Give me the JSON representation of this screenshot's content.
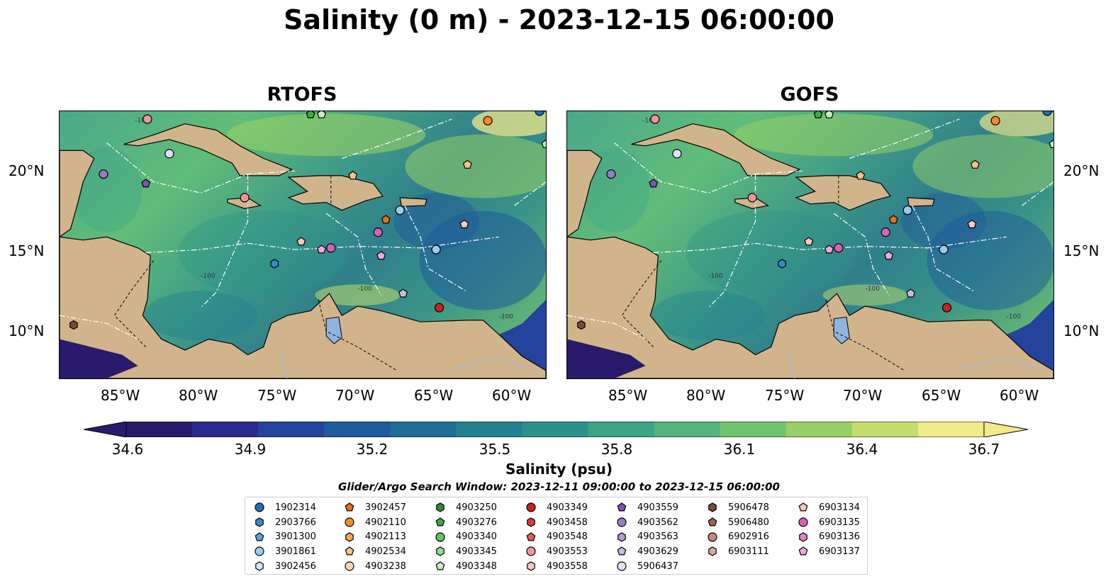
{
  "title": "Salinity (0 m) - 2023-12-15 06:00:00",
  "panels": [
    {
      "title": "RTOFS"
    },
    {
      "title": "GOFS"
    }
  ],
  "axes": {
    "lon_ticks": [
      "85°W",
      "80°W",
      "75°W",
      "70°W",
      "65°W",
      "60°W"
    ],
    "lat_ticks": [
      "20°N",
      "15°N",
      "10°N"
    ],
    "lon_range": [
      -89,
      -58
    ],
    "lat_range": [
      7,
      24
    ]
  },
  "map_labels": [
    "-100",
    "-1000",
    "-100",
    "-100",
    "-100"
  ],
  "colorbar": {
    "ticks": [
      "34.6",
      "34.9",
      "35.2",
      "35.5",
      "35.8",
      "36.1",
      "36.4",
      "36.7"
    ],
    "title": "Salinity (psu)",
    "colors": [
      "#2a1a6b",
      "#2b2a8f",
      "#24439c",
      "#1f5a9b",
      "#1f6e95",
      "#23808f",
      "#2c918a",
      "#3ea486",
      "#54b47c",
      "#72c36f",
      "#97d066",
      "#c3dc6b",
      "#f2e98a"
    ]
  },
  "search_window": "Glider/Argo Search Window: 2023-12-11 09:00:00 to 2023-12-15 06:00:00",
  "legend": {
    "columns": [
      [
        {
          "label": "1902314",
          "marker": "circle",
          "color": "#1f6fb5"
        },
        {
          "label": "2903766",
          "marker": "hexagon",
          "color": "#3a88c7"
        },
        {
          "label": "3901300",
          "marker": "pentagon",
          "color": "#5fa4da"
        },
        {
          "label": "3901861",
          "marker": "circle",
          "color": "#9ccbee"
        },
        {
          "label": "3902456",
          "marker": "hexagon",
          "color": "#cfe6f8"
        }
      ],
      [
        {
          "label": "3902457",
          "marker": "pentagon",
          "color": "#e8700f"
        },
        {
          "label": "4902110",
          "marker": "circle",
          "color": "#f58a2c"
        },
        {
          "label": "4902113",
          "marker": "hexagon",
          "color": "#f8a453"
        },
        {
          "label": "4902534",
          "marker": "pentagon",
          "color": "#fbbf82"
        },
        {
          "label": "4903238",
          "marker": "circle",
          "color": "#fdd9b5"
        }
      ],
      [
        {
          "label": "4903250",
          "marker": "hexagon",
          "color": "#2e8b30"
        },
        {
          "label": "4903276",
          "marker": "pentagon",
          "color": "#3fa844"
        },
        {
          "label": "4903340",
          "marker": "circle",
          "color": "#62c265"
        },
        {
          "label": "4903345",
          "marker": "hexagon",
          "color": "#99d992"
        },
        {
          "label": "4903348",
          "marker": "pentagon",
          "color": "#c8efc2"
        }
      ],
      [
        {
          "label": "4903349",
          "marker": "circle",
          "color": "#cc1f1f"
        },
        {
          "label": "4903458",
          "marker": "hexagon",
          "color": "#e0393b"
        },
        {
          "label": "4903548",
          "marker": "pentagon",
          "color": "#ea5a5a"
        },
        {
          "label": "4903553",
          "marker": "circle",
          "color": "#f39596"
        },
        {
          "label": "4903558",
          "marker": "hexagon",
          "color": "#f9c7c6"
        }
      ],
      [
        {
          "label": "4903559",
          "marker": "pentagon",
          "color": "#7b55b0"
        },
        {
          "label": "4903562",
          "marker": "circle",
          "color": "#9a79c7"
        },
        {
          "label": "4903563",
          "marker": "hexagon",
          "color": "#b49ad8"
        },
        {
          "label": "4903629",
          "marker": "pentagon",
          "color": "#cdb9e8"
        },
        {
          "label": "5906437",
          "marker": "circle",
          "color": "#e6dcf6"
        }
      ],
      [
        {
          "label": "5906478",
          "marker": "hexagon",
          "color": "#7a4a3a"
        },
        {
          "label": "5906480",
          "marker": "pentagon",
          "color": "#9a6552"
        },
        {
          "label": "6902916",
          "marker": "circle",
          "color": "#c4897a"
        },
        {
          "label": "6903111",
          "marker": "hexagon",
          "color": "#d9a99a"
        }
      ],
      [
        {
          "label": "6903134",
          "marker": "pentagon",
          "color": "#f7c8b8"
        },
        {
          "label": "6903135",
          "marker": "circle",
          "color": "#d960b5"
        },
        {
          "label": "6903136",
          "marker": "hexagon",
          "color": "#e780c8"
        },
        {
          "label": "6903137",
          "marker": "pentagon",
          "color": "#f3a8da"
        }
      ]
    ]
  }
}
